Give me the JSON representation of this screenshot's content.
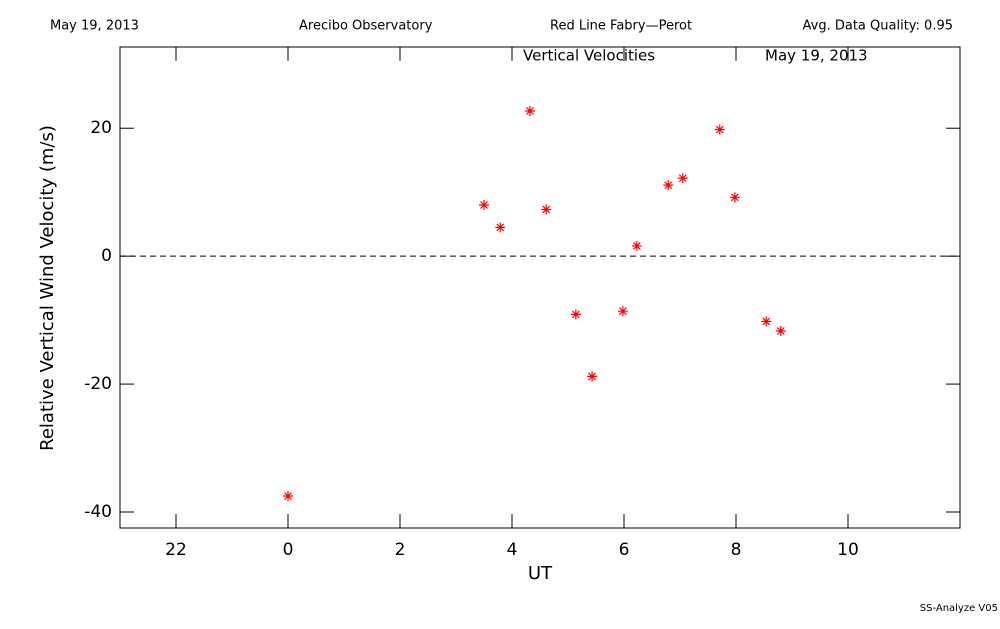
{
  "chart_data": {
    "type": "scatter",
    "header": [
      "May 19, 2013",
      "Arecibo Observatory",
      "Red Line Fabry—Perot",
      "Avg. Data Quality: 0.95"
    ],
    "title": "Vertical Velocities",
    "subtitle": "May 19, 2013",
    "x_label": "UT",
    "y_label": "Relative Vertical Wind Velocity (m/s)",
    "footer": "SS-Analyze V05",
    "xlim": [
      -3,
      12
    ],
    "xticks": [
      {
        "value": -2,
        "label": "22"
      },
      0,
      2,
      4,
      6,
      8,
      10
    ],
    "ylim": [
      -42.5,
      32.7
    ],
    "yticks": [
      -40,
      -20,
      0,
      20
    ],
    "reference_line": 0,
    "series": [
      {
        "color": "#ff0000",
        "x": [
          0.0,
          3.5,
          3.79,
          4.32,
          4.61,
          5.14,
          5.43,
          5.98,
          6.23,
          6.79,
          7.05,
          7.71,
          7.98,
          8.54,
          8.8
        ],
        "values": [
          -37.5,
          8.0,
          4.5,
          22.7,
          7.3,
          -9.1,
          -18.8,
          -8.6,
          1.6,
          11.1,
          12.2,
          19.8,
          9.2,
          -10.2,
          -11.7
        ]
      }
    ]
  }
}
